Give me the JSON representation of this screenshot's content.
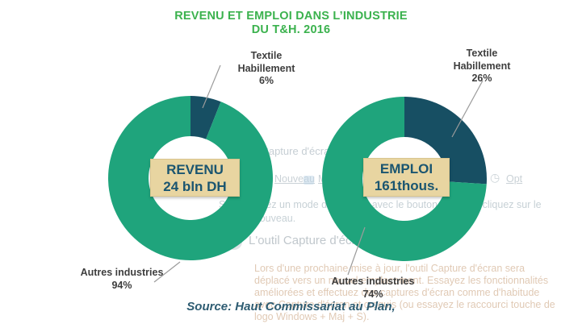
{
  "title": {
    "line1": "REVENU ET EMPLOI DANS L’INDUSTRIE",
    "line2": "DU T&H. 2016"
  },
  "source": "Source: Haut Commissariat au Plan,",
  "colors": {
    "title_green": "#3bb24e",
    "donut_green": "#1fa47c",
    "donut_dark": "#174f63",
    "center_box_bg": "#e8d5a1",
    "center_box_text": "#1a5570",
    "label_text": "#3e3e3e",
    "leader_line": "#9b9b9b",
    "source_text": "#2e5c72"
  },
  "chart_data": [
    {
      "type": "pie",
      "subtype": "donut",
      "name": "revenu",
      "center_label": {
        "line1": "REVENU",
        "line2": "24 bln DH"
      },
      "slices": [
        {
          "label": "Textile Habillement",
          "pct": 6,
          "color_key": "donut_dark"
        },
        {
          "label": "Autres industries",
          "pct": 94,
          "color_key": "donut_green"
        }
      ],
      "callouts": {
        "textile": {
          "lines": [
            "Textile",
            "Habillement",
            "6%"
          ]
        },
        "autres": {
          "lines": [
            "Autres industries",
            "94%"
          ]
        }
      }
    },
    {
      "type": "pie",
      "subtype": "donut",
      "name": "emploi",
      "center_label": {
        "line1": "EMPLOI",
        "line2": "161thous."
      },
      "slices": [
        {
          "label": "Textile Habillement",
          "pct": 26,
          "color_key": "donut_dark"
        },
        {
          "label": "Autres industries",
          "pct": 74,
          "color_key": "donut_green"
        }
      ],
      "callouts": {
        "textile": {
          "lines": [
            "Textile",
            "Habillement",
            "26%"
          ]
        },
        "autres": {
          "lines": [
            "Autres industries",
            "74%"
          ]
        }
      }
    }
  ],
  "ghost_overlay": {
    "window_title": "outil Capture d'écran",
    "toolbar": {
      "nouveau": "Nouveau",
      "mode": "Mode",
      "caret": "▾",
      "close": "✕",
      "caret2": "▾",
      "clock": "◷",
      "options": "Opt"
    },
    "hint_line1": "Sélectionnez un mode de capture avec le bouton Mode ou cliquez sur le",
    "hint_line2": "bouton Nouveau.",
    "heading": "L'outil Capture d'écran déménage...",
    "para": [
      "Lors d'une prochaine mise à jour, l'outil Capture d'écran sera",
      "déplacé vers un nouvel emplacement. Essayez les fonctionnalités",
      "améliorées et effectuez des captures d'écran comme d'habitude",
      "avec Capture d'écran et croquis (ou essayez le raccourci touche de",
      "logo Windows + Maj + S)."
    ]
  }
}
